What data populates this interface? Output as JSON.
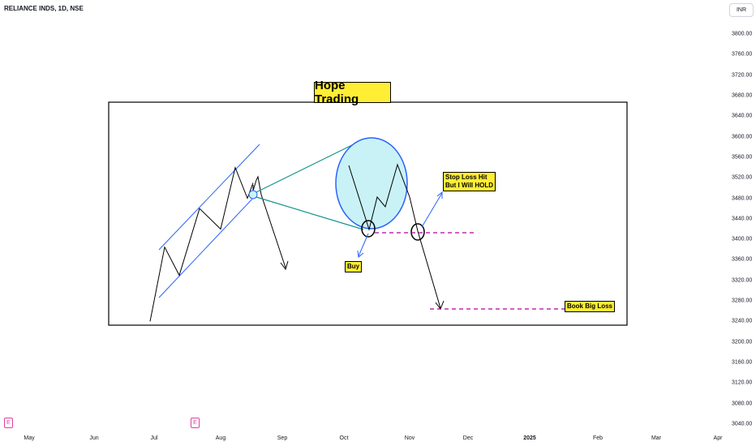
{
  "header": {
    "symbol": "RELIANCE INDS, 1D, NSE",
    "currency": "INR"
  },
  "annotations": {
    "title": "Hope Trading",
    "buy": "Buy",
    "stop_loss_line1": "Stop Loss Hit",
    "stop_loss_line2": "But I Will HOLD",
    "book_loss": "Book Big Loss"
  },
  "event_markers": [
    "E",
    "E"
  ],
  "colors": {
    "channel": "#2962ff",
    "zoom_line": "#12948c",
    "circle_fill": "#c9f2f7",
    "dashed_level": "#b4009e",
    "note_bg": "#ffee33"
  },
  "chart_data": {
    "type": "line",
    "title": "RELIANCE INDS, 1D, NSE",
    "x_ticks": [
      "May",
      "Jun",
      "Jul",
      "Aug",
      "Sep",
      "Oct",
      "Nov",
      "Dec",
      "2025",
      "Feb",
      "Mar",
      "Apr"
    ],
    "y_ticks": [
      3800,
      3760,
      3720,
      3680,
      3640,
      3600,
      3560,
      3520,
      3480,
      3440,
      3400,
      3360,
      3320,
      3280,
      3240,
      3200,
      3160,
      3120,
      3080,
      3040
    ],
    "ylim": [
      3040,
      3800
    ],
    "grid": false,
    "series": [
      {
        "values": [
          3240,
          3385,
          3330,
          3460,
          3420,
          3540,
          3480,
          3510
        ]
      }
    ]
  }
}
